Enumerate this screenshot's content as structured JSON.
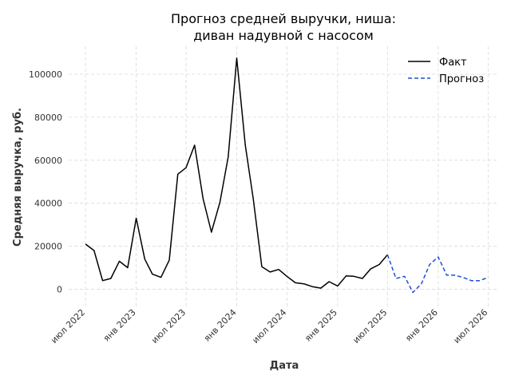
{
  "chart_data": {
    "type": "line",
    "title": [
      "Прогноз средней выручки, ниша:",
      "диван надувной с насосом"
    ],
    "xlabel": "Дата",
    "ylabel": "Средняя выручка, руб.",
    "xlim": [
      "2022-05-01",
      "2026-08-01"
    ],
    "ylim": [
      -8000,
      113000
    ],
    "yticks": [
      0,
      20000,
      40000,
      60000,
      80000,
      100000
    ],
    "xticks": [
      {
        "date": "2022-07-01",
        "label": "июл 2022"
      },
      {
        "date": "2023-01-01",
        "label": "янв 2023"
      },
      {
        "date": "2023-07-01",
        "label": "июл 2023"
      },
      {
        "date": "2024-01-01",
        "label": "янв 2024"
      },
      {
        "date": "2024-07-01",
        "label": "июл 2024"
      },
      {
        "date": "2025-01-01",
        "label": "янв 2025"
      },
      {
        "date": "2025-07-01",
        "label": "июл 2025"
      },
      {
        "date": "2026-01-01",
        "label": "янв 2026"
      },
      {
        "date": "2026-07-01",
        "label": "июл 2026"
      }
    ],
    "grid": true,
    "legend_position": "top-right",
    "series": [
      {
        "name": "Факт",
        "color": "#000000",
        "style": "solid",
        "x": [
          "2022-07-01",
          "2022-08-01",
          "2022-09-01",
          "2022-10-01",
          "2022-11-01",
          "2022-12-01",
          "2023-01-01",
          "2023-02-01",
          "2023-03-01",
          "2023-04-01",
          "2023-05-01",
          "2023-06-01",
          "2023-07-01",
          "2023-08-01",
          "2023-09-01",
          "2023-10-01",
          "2023-11-01",
          "2023-12-01",
          "2024-01-01",
          "2024-02-01",
          "2024-03-01",
          "2024-04-01",
          "2024-05-01",
          "2024-06-01",
          "2024-07-01",
          "2024-08-01",
          "2024-09-01",
          "2024-10-01",
          "2024-11-01",
          "2024-12-01",
          "2025-01-01",
          "2025-02-01",
          "2025-03-01",
          "2025-04-01",
          "2025-05-01",
          "2025-06-01",
          "2025-07-01"
        ],
        "y": [
          21000,
          18000,
          4000,
          5000,
          13000,
          10000,
          33000,
          14000,
          7000,
          5500,
          13500,
          53500,
          56500,
          67000,
          42000,
          26500,
          40500,
          61500,
          107500,
          67000,
          42000,
          10500,
          8000,
          9200,
          6000,
          3000,
          2500,
          1200,
          500,
          3500,
          1500,
          6200,
          6000,
          5000,
          9500,
          11500,
          16000
        ]
      },
      {
        "name": "Прогноз",
        "color": "#1f4fd8",
        "style": "dashed",
        "x": [
          "2025-07-01",
          "2025-08-01",
          "2025-09-01",
          "2025-10-01",
          "2025-11-01",
          "2025-12-01",
          "2026-01-01",
          "2026-02-01",
          "2026-03-01",
          "2026-04-01",
          "2026-05-01",
          "2026-06-01",
          "2026-07-01"
        ],
        "y": [
          16000,
          5000,
          6000,
          -1500,
          2500,
          11500,
          15000,
          6500,
          6500,
          5500,
          4000,
          4000,
          5500
        ]
      }
    ]
  }
}
